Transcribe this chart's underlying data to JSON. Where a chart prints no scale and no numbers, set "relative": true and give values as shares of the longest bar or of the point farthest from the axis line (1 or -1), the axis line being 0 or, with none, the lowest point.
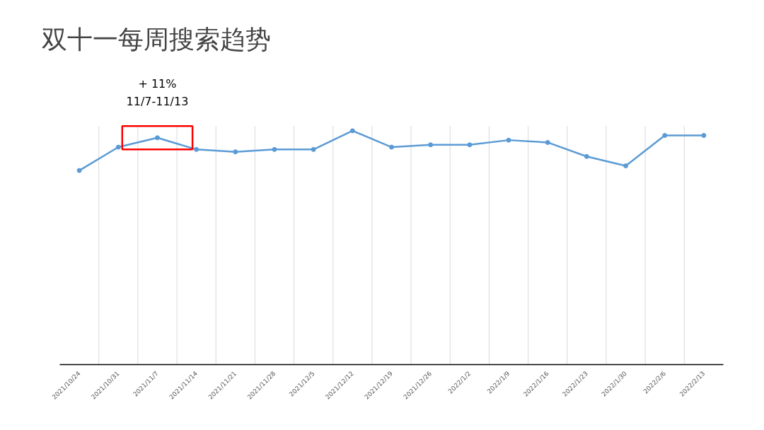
{
  "chart_data": {
    "type": "line",
    "title": "双十一每周搜索趋势",
    "relative": true,
    "categories": [
      "2021/10/24",
      "2021/10/31",
      "2021/11/7",
      "2021/11/14",
      "2021/11/21",
      "2021/11/28",
      "2021/12/5",
      "2021/12/12",
      "2021/12/19",
      "2021/12/26",
      "2022/1/2",
      "2022/1/9",
      "2022/1/16",
      "2022/1/23",
      "2022/1/30",
      "2022/2/6",
      "2022/2/13"
    ],
    "series": [
      {
        "color": "#5b9bd5",
        "values": [
          0.83,
          0.93,
          0.97,
          0.92,
          0.91,
          0.92,
          0.92,
          1,
          0.93,
          0.94,
          0.94,
          0.96,
          0.95,
          0.89,
          0.85,
          0.98,
          0.98
        ]
      }
    ],
    "annotations": [
      {
        "text": "+ 11%\n11/7-11/13",
        "x": "2021/11/7",
        "y": 0.97
      }
    ],
    "marker": "circle",
    "line_style": "solid",
    "grid": "x"
  }
}
